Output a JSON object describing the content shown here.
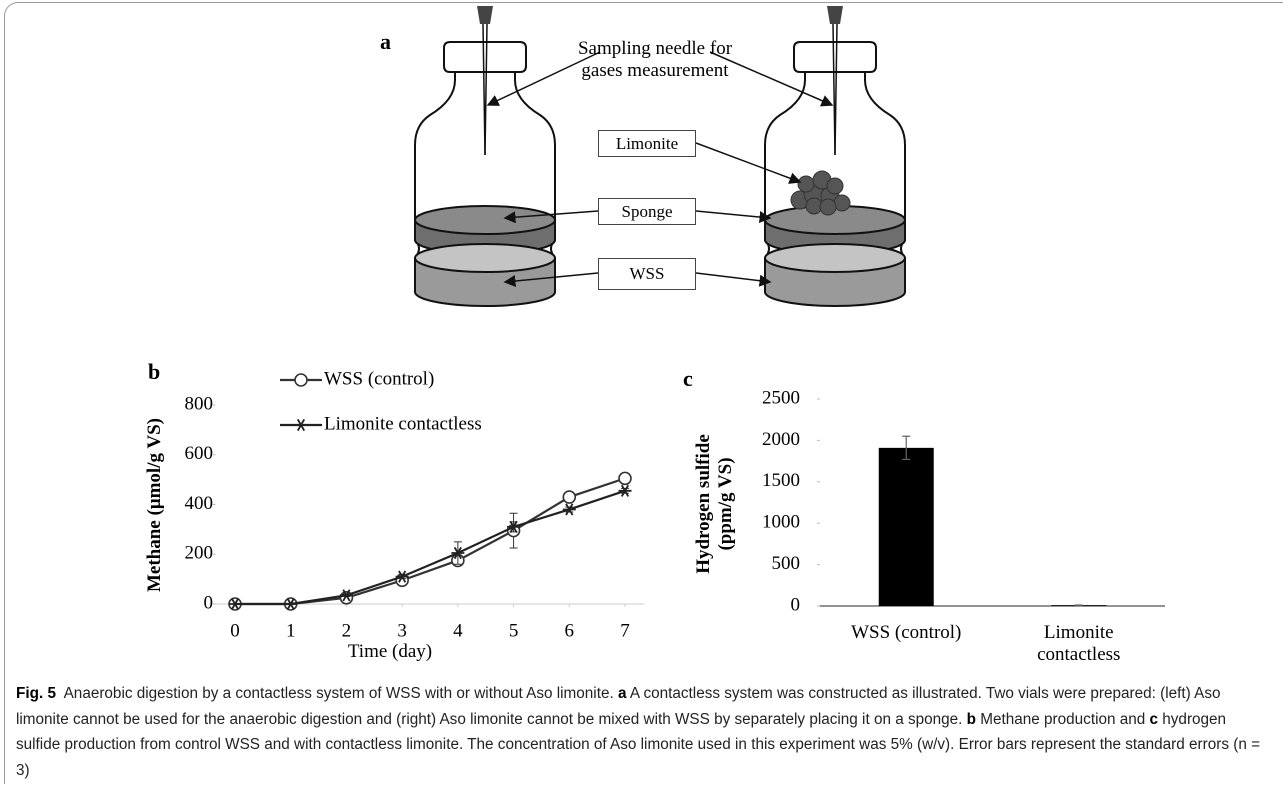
{
  "panel_a": {
    "label": "a",
    "needle_label": "Sampling needle for gases measurement",
    "limonite_label": "Limonite",
    "sponge_label": "Sponge",
    "wss_label": "WSS"
  },
  "chart_data": [
    {
      "type": "line",
      "label": "b",
      "x_label": "Time (day)",
      "y_label": "Methane (μmol/g VS)",
      "x": [
        0,
        1,
        2,
        3,
        4,
        5,
        6,
        7
      ],
      "xlim": [
        -0.35,
        7.35
      ],
      "xticks": [
        0,
        1,
        2,
        3,
        4,
        5,
        6,
        7
      ],
      "ylim": [
        0,
        800
      ],
      "yticks": [
        0,
        200,
        400,
        600,
        800
      ],
      "series": [
        {
          "name": "WSS (control)",
          "marker": "circle",
          "color": "#333333",
          "values": [
            0,
            0,
            25,
            95,
            175,
            295,
            430,
            505
          ],
          "errors": [
            0,
            0,
            5,
            8,
            15,
            70,
            10,
            10
          ]
        },
        {
          "name": "Limonite contactless",
          "marker": "star",
          "color": "#222222",
          "values": [
            0,
            0,
            35,
            110,
            205,
            310,
            380,
            455
          ],
          "errors": [
            0,
            0,
            5,
            8,
            45,
            20,
            10,
            10
          ]
        }
      ]
    },
    {
      "type": "bar",
      "label": "c",
      "y_label": "Hydrogen sulfide (ppm/g VS)",
      "categories": [
        "WSS (control)",
        "Limonite contactless"
      ],
      "values": [
        1910,
        10
      ],
      "errors": [
        140,
        3
      ],
      "color": "#000000",
      "ylim": [
        0,
        2500
      ],
      "yticks": [
        0,
        500,
        1000,
        1500,
        2000,
        2500
      ]
    }
  ],
  "caption": {
    "label": "Fig. 5",
    "segments": [
      "Anaerobic digestion by a contactless system of WSS with or without Aso limonite. ",
      "a",
      " A contactless system was constructed as illustrated. Two vials were prepared: (left) Aso limonite cannot be used for the anaerobic digestion and (right) Aso limonite cannot be mixed with WSS by separately placing it on a sponge. ",
      "b",
      " Methane production and ",
      "c",
      " hydrogen sulfide production from control WSS and with contactless limonite. The concentration of Aso limonite used in this experiment was 5% (w/v). Error bars represent the standard errors (n = 3)"
    ]
  }
}
